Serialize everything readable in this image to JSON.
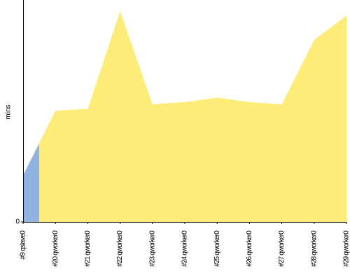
{
  "chart_data": {
    "type": "area",
    "y_label": "mins",
    "categories": [
      "#9 qslave0",
      "#20 qworker0",
      "#21 qworker0",
      "#22 qworker0",
      "#23 qworker0",
      "#24 qworker0",
      "#25 qworker0",
      "#26 qworker0",
      "#27 qworker0",
      "#28 qworker0",
      "#29 qworker0"
    ],
    "series": [
      {
        "values": [
          2.1,
          5.0,
          5.1,
          9.5,
          5.3,
          5.4,
          5.6,
          5.4,
          5.3,
          8.2,
          9.3
        ],
        "colors": [
          "#8fb3de",
          "#fdec78",
          "#fdec78",
          "#fdec78",
          "#fdec78",
          "#fdec78",
          "#fdec78",
          "#fdec78",
          "#fdec78",
          "#fdec78",
          "#fdec78"
        ]
      }
    ],
    "ylim": [
      0,
      10
    ],
    "yticks": [
      0
    ],
    "grid": false
  }
}
